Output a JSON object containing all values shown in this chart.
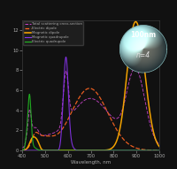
{
  "title": "",
  "xlabel": "Wavelength, nm",
  "ylabel": "",
  "background_color": "#111111",
  "plot_bg_color": "#111111",
  "text_color": "#aaaaaa",
  "xlim": [
    400,
    1000
  ],
  "ylim": [
    0,
    13
  ],
  "yticks": [
    0,
    2,
    4,
    6,
    8,
    10,
    12
  ],
  "xticks": [
    400,
    500,
    600,
    700,
    800,
    900,
    1000
  ],
  "sphere_text": "100nm",
  "sphere_n": "n=4",
  "figsize": [
    2.0,
    1.91
  ],
  "dpi": 100,
  "lines": {
    "total": {
      "color": "#cc44cc",
      "linestyle": "--",
      "lw": 0.7,
      "label": "Total scattering cross-section"
    },
    "ed": {
      "color": "#ff6622",
      "linestyle": "--",
      "lw": 0.9,
      "label": "Electric dipole"
    },
    "md": {
      "color": "#ffaa00",
      "linestyle": "-",
      "lw": 1.1,
      "label": "Magnetic dipole"
    },
    "mq": {
      "color": "#8833ee",
      "linestyle": "-",
      "lw": 0.8,
      "label": "Magnetic quadrupole"
    },
    "eq": {
      "color": "#22bb22",
      "linestyle": "-",
      "lw": 0.8,
      "label": "Electric quadrupole"
    }
  }
}
